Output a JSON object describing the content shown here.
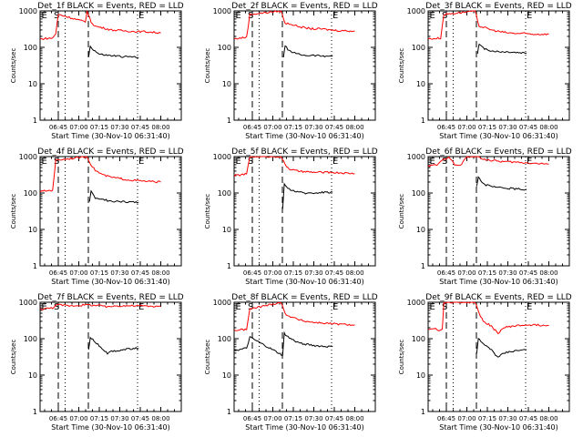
{
  "chart_data": {
    "type": "line",
    "grid": false,
    "legend": "none",
    "y_scale": "log",
    "ylim": [
      1,
      1000
    ],
    "y_ticks": [
      "1",
      "10",
      "100",
      "1000"
    ],
    "x_ticks": [
      "06:45",
      "07:00",
      "07:15",
      "07:30",
      "07:45",
      "08:00"
    ],
    "ylabel": "Counts/sec",
    "xlabel": "Start Time (30-Nov-10 06:31:40)",
    "colors": {
      "events": "#000000",
      "lld": "#ff0000"
    },
    "markers": [
      {
        "label": "E",
        "time": "06:32"
      },
      {
        "label": "S",
        "time": "06:41"
      },
      {
        "label": "",
        "time": "06:45",
        "style": "dashed"
      },
      {
        "label": "",
        "time": "06:50",
        "style": "dotted"
      },
      {
        "label": "",
        "time": "07:07",
        "style": "dashed"
      },
      {
        "label": "E",
        "time": "07:43",
        "style": "dotted"
      }
    ],
    "panels": [
      {
        "title": "Det_1f BLACK = Events, RED = LLD",
        "series": [
          {
            "name": "RED",
            "values": [
              [
                6.53,
                170
              ],
              [
                6.68,
                180
              ],
              [
                6.72,
                240
              ],
              [
                6.75,
                800
              ],
              [
                6.85,
                700
              ],
              [
                7.0,
                560
              ],
              [
                7.08,
                500
              ],
              [
                7.1,
                1000
              ],
              [
                7.15,
                500
              ],
              [
                7.2,
                380
              ],
              [
                7.3,
                340
              ],
              [
                7.4,
                300
              ],
              [
                7.5,
                290
              ],
              [
                7.6,
                280
              ],
              [
                7.7,
                270
              ],
              [
                7.8,
                270
              ],
              [
                7.9,
                260
              ],
              [
                8.0,
                250
              ]
            ]
          },
          {
            "name": "BLACK",
            "values": [
              [
                7.12,
                55
              ],
              [
                7.14,
                110
              ],
              [
                7.18,
                85
              ],
              [
                7.25,
                65
              ],
              [
                7.35,
                60
              ],
              [
                7.45,
                58
              ],
              [
                7.55,
                55
              ],
              [
                7.65,
                55
              ],
              [
                7.73,
                52
              ]
            ]
          }
        ]
      },
      {
        "title": "Det_2f BLACK = Events, RED = LLD",
        "series": [
          {
            "name": "RED",
            "values": [
              [
                6.53,
                170
              ],
              [
                6.68,
                190
              ],
              [
                6.72,
                800
              ],
              [
                7.1,
                1000
              ],
              [
                7.15,
                450
              ],
              [
                7.2,
                450
              ],
              [
                7.3,
                380
              ],
              [
                7.4,
                340
              ],
              [
                7.5,
                320
              ],
              [
                7.6,
                320
              ],
              [
                7.7,
                300
              ],
              [
                7.8,
                290
              ],
              [
                8.0,
                280
              ]
            ]
          },
          {
            "name": "BLACK",
            "values": [
              [
                7.13,
                55
              ],
              [
                7.15,
                110
              ],
              [
                7.2,
                80
              ],
              [
                7.3,
                65
              ],
              [
                7.4,
                60
              ],
              [
                7.5,
                60
              ],
              [
                7.6,
                58
              ],
              [
                7.73,
                58
              ]
            ]
          }
        ]
      },
      {
        "title": "Det_3f BLACK = Events, RED = LLD",
        "series": [
          {
            "name": "RED",
            "values": [
              [
                6.53,
                170
              ],
              [
                6.68,
                180
              ],
              [
                6.72,
                800
              ],
              [
                7.1,
                1000
              ],
              [
                7.15,
                380
              ],
              [
                7.2,
                360
              ],
              [
                7.3,
                300
              ],
              [
                7.4,
                270
              ],
              [
                7.5,
                250
              ],
              [
                7.6,
                240
              ],
              [
                7.7,
                240
              ],
              [
                7.8,
                230
              ],
              [
                8.0,
                230
              ]
            ]
          },
          {
            "name": "BLACK",
            "values": [
              [
                7.13,
                70
              ],
              [
                7.15,
                120
              ],
              [
                7.2,
                95
              ],
              [
                7.3,
                80
              ],
              [
                7.4,
                75
              ],
              [
                7.5,
                75
              ],
              [
                7.6,
                72
              ],
              [
                7.73,
                70
              ]
            ]
          }
        ]
      },
      {
        "title": "Det_4f BLACK = Events, RED = LLD",
        "series": [
          {
            "name": "RED",
            "values": [
              [
                6.53,
                110
              ],
              [
                6.68,
                120
              ],
              [
                6.72,
                800
              ],
              [
                7.1,
                1000
              ],
              [
                7.15,
                600
              ],
              [
                7.2,
                420
              ],
              [
                7.3,
                310
              ],
              [
                7.4,
                270
              ],
              [
                7.5,
                250
              ],
              [
                7.6,
                230
              ],
              [
                7.7,
                220
              ],
              [
                7.8,
                210
              ],
              [
                8.0,
                200
              ]
            ]
          },
          {
            "name": "BLACK",
            "values": [
              [
                7.13,
                55
              ],
              [
                7.15,
                110
              ],
              [
                7.2,
                75
              ],
              [
                7.3,
                65
              ],
              [
                7.4,
                60
              ],
              [
                7.5,
                58
              ],
              [
                7.6,
                57
              ],
              [
                7.73,
                55
              ]
            ]
          }
        ]
      },
      {
        "title": "Det_5f BLACK = Events, RED = LLD",
        "series": [
          {
            "name": "RED",
            "values": [
              [
                6.53,
                300
              ],
              [
                6.68,
                330
              ],
              [
                6.72,
                1000
              ],
              [
                7.1,
                1000
              ],
              [
                7.15,
                600
              ],
              [
                7.2,
                460
              ],
              [
                7.3,
                400
              ],
              [
                7.4,
                380
              ],
              [
                7.5,
                370
              ],
              [
                7.6,
                370
              ],
              [
                7.7,
                370
              ],
              [
                7.8,
                360
              ],
              [
                8.0,
                340
              ]
            ]
          },
          {
            "name": "BLACK",
            "values": [
              [
                7.12,
                35
              ],
              [
                7.14,
                170
              ],
              [
                7.2,
                130
              ],
              [
                7.3,
                105
              ],
              [
                7.4,
                100
              ],
              [
                7.5,
                100
              ],
              [
                7.6,
                105
              ],
              [
                7.73,
                105
              ]
            ]
          }
        ]
      },
      {
        "title": "Det_6f BLACK = Events, RED = LLD",
        "series": [
          {
            "name": "RED",
            "values": [
              [
                6.53,
                550
              ],
              [
                6.65,
                600
              ],
              [
                6.7,
                800
              ],
              [
                6.78,
                1000
              ],
              [
                6.85,
                600
              ],
              [
                6.92,
                560
              ],
              [
                7.0,
                1000
              ],
              [
                7.08,
                1000
              ],
              [
                7.15,
                1000
              ],
              [
                7.2,
                850
              ],
              [
                7.3,
                780
              ],
              [
                7.4,
                740
              ],
              [
                7.5,
                720
              ],
              [
                7.6,
                700
              ],
              [
                7.7,
                680
              ],
              [
                7.8,
                660
              ],
              [
                8.0,
                620
              ]
            ]
          },
          {
            "name": "BLACK",
            "values": [
              [
                7.12,
                150
              ],
              [
                7.14,
                290
              ],
              [
                7.2,
                175
              ],
              [
                7.3,
                150
              ],
              [
                7.4,
                140
              ],
              [
                7.5,
                135
              ],
              [
                7.6,
                130
              ],
              [
                7.73,
                125
              ]
            ]
          }
        ]
      },
      {
        "title": "Det_7f BLACK = Events, RED = LLD",
        "series": [
          {
            "name": "RED",
            "values": [
              [
                6.53,
                650
              ],
              [
                6.68,
                700
              ],
              [
                6.72,
                850
              ],
              [
                6.9,
                800
              ],
              [
                7.0,
                820
              ],
              [
                7.1,
                850
              ],
              [
                7.2,
                820
              ],
              [
                7.3,
                800
              ],
              [
                7.35,
                720
              ],
              [
                7.4,
                780
              ],
              [
                7.5,
                800
              ],
              [
                7.6,
                800
              ],
              [
                7.7,
                800
              ],
              [
                7.8,
                790
              ],
              [
                8.0,
                760
              ]
            ]
          },
          {
            "name": "BLACK",
            "values": [
              [
                7.12,
                50
              ],
              [
                7.14,
                110
              ],
              [
                7.2,
                80
              ],
              [
                7.3,
                50
              ],
              [
                7.35,
                40
              ],
              [
                7.4,
                45
              ],
              [
                7.5,
                48
              ],
              [
                7.6,
                52
              ],
              [
                7.73,
                55
              ]
            ]
          }
        ]
      },
      {
        "title": "Det_8f BLACK = Events, RED = LLD",
        "series": [
          {
            "name": "RED",
            "values": [
              [
                6.53,
                170
              ],
              [
                6.68,
                180
              ],
              [
                6.72,
                650
              ],
              [
                7.1,
                1000
              ],
              [
                7.15,
                480
              ],
              [
                7.2,
                420
              ],
              [
                7.3,
                340
              ],
              [
                7.4,
                300
              ],
              [
                7.5,
                280
              ],
              [
                7.6,
                270
              ],
              [
                7.7,
                260
              ],
              [
                7.8,
                250
              ],
              [
                8.0,
                240
              ]
            ]
          },
          {
            "name": "BLACK",
            "values": [
              [
                6.53,
                48
              ],
              [
                6.6,
                50
              ],
              [
                6.68,
                55
              ],
              [
                6.72,
                110
              ],
              [
                7.12,
                35
              ],
              [
                7.14,
                140
              ],
              [
                7.2,
                105
              ],
              [
                7.3,
                80
              ],
              [
                7.4,
                70
              ],
              [
                7.5,
                65
              ],
              [
                7.6,
                62
              ],
              [
                7.73,
                60
              ]
            ]
          }
        ]
      },
      {
        "title": "Det_9f BLACK = Events, RED = LLD",
        "series": [
          {
            "name": "RED",
            "values": [
              [
                6.53,
                180
              ],
              [
                6.62,
                200
              ],
              [
                6.66,
                160
              ],
              [
                6.7,
                180
              ],
              [
                6.72,
                1000
              ],
              [
                7.1,
                1000
              ],
              [
                7.15,
                500
              ],
              [
                7.2,
                300
              ],
              [
                7.3,
                220
              ],
              [
                7.38,
                140
              ],
              [
                7.45,
                200
              ],
              [
                7.55,
                220
              ],
              [
                7.65,
                230
              ],
              [
                7.75,
                240
              ],
              [
                8.0,
                230
              ]
            ]
          },
          {
            "name": "BLACK",
            "values": [
              [
                7.12,
                40
              ],
              [
                7.14,
                100
              ],
              [
                7.2,
                70
              ],
              [
                7.3,
                50
              ],
              [
                7.38,
                30
              ],
              [
                7.45,
                40
              ],
              [
                7.55,
                45
              ],
              [
                7.65,
                48
              ],
              [
                7.73,
                50
              ]
            ]
          }
        ]
      }
    ]
  }
}
